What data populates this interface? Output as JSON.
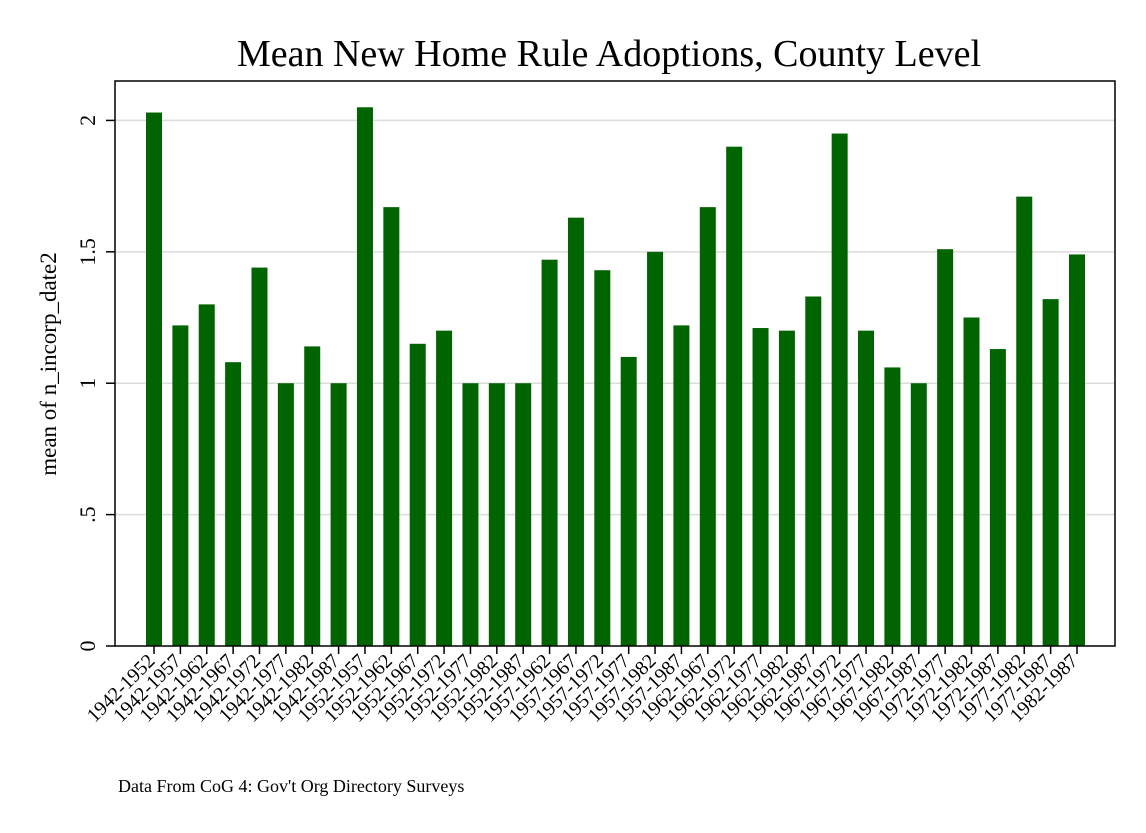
{
  "chart_data": {
    "type": "bar",
    "title": "Mean New Home Rule Adoptions, County Level",
    "ylabel": "mean of n_incorp_date2",
    "xlabel": "",
    "note": "Data From CoG 4: Gov't Org Directory Surveys",
    "ylim": [
      0,
      2.15
    ],
    "yticks": [
      0,
      0.5,
      1,
      1.5,
      2
    ],
    "ytick_labels": [
      "0",
      ".5",
      "1",
      "1.5",
      "2"
    ],
    "grid": true,
    "bar_color": "#006400",
    "categories": [
      "1942-1952",
      "1942-1957",
      "1942-1962",
      "1942-1967",
      "1942-1972",
      "1942-1977",
      "1942-1982",
      "1942-1987",
      "1952-1957",
      "1952-1962",
      "1952-1967",
      "1952-1972",
      "1952-1977",
      "1952-1982",
      "1952-1987",
      "1957-1962",
      "1957-1967",
      "1957-1972",
      "1957-1977",
      "1957-1982",
      "1957-1987",
      "1962-1967",
      "1962-1972",
      "1962-1977",
      "1962-1982",
      "1962-1987",
      "1967-1972",
      "1967-1977",
      "1967-1982",
      "1967-1987",
      "1972-1977",
      "1972-1982",
      "1972-1987",
      "1977-1982",
      "1977-1987",
      "1982-1987"
    ],
    "values": [
      2.03,
      1.22,
      1.3,
      1.08,
      1.44,
      1.0,
      1.14,
      1.0,
      2.05,
      1.67,
      1.15,
      1.2,
      1.0,
      1.0,
      1.0,
      1.47,
      1.63,
      1.43,
      1.1,
      1.5,
      1.22,
      1.67,
      1.9,
      1.21,
      1.2,
      1.33,
      1.95,
      1.2,
      1.06,
      1.0,
      1.51,
      1.25,
      1.13,
      1.71,
      1.32,
      1.49
    ]
  }
}
